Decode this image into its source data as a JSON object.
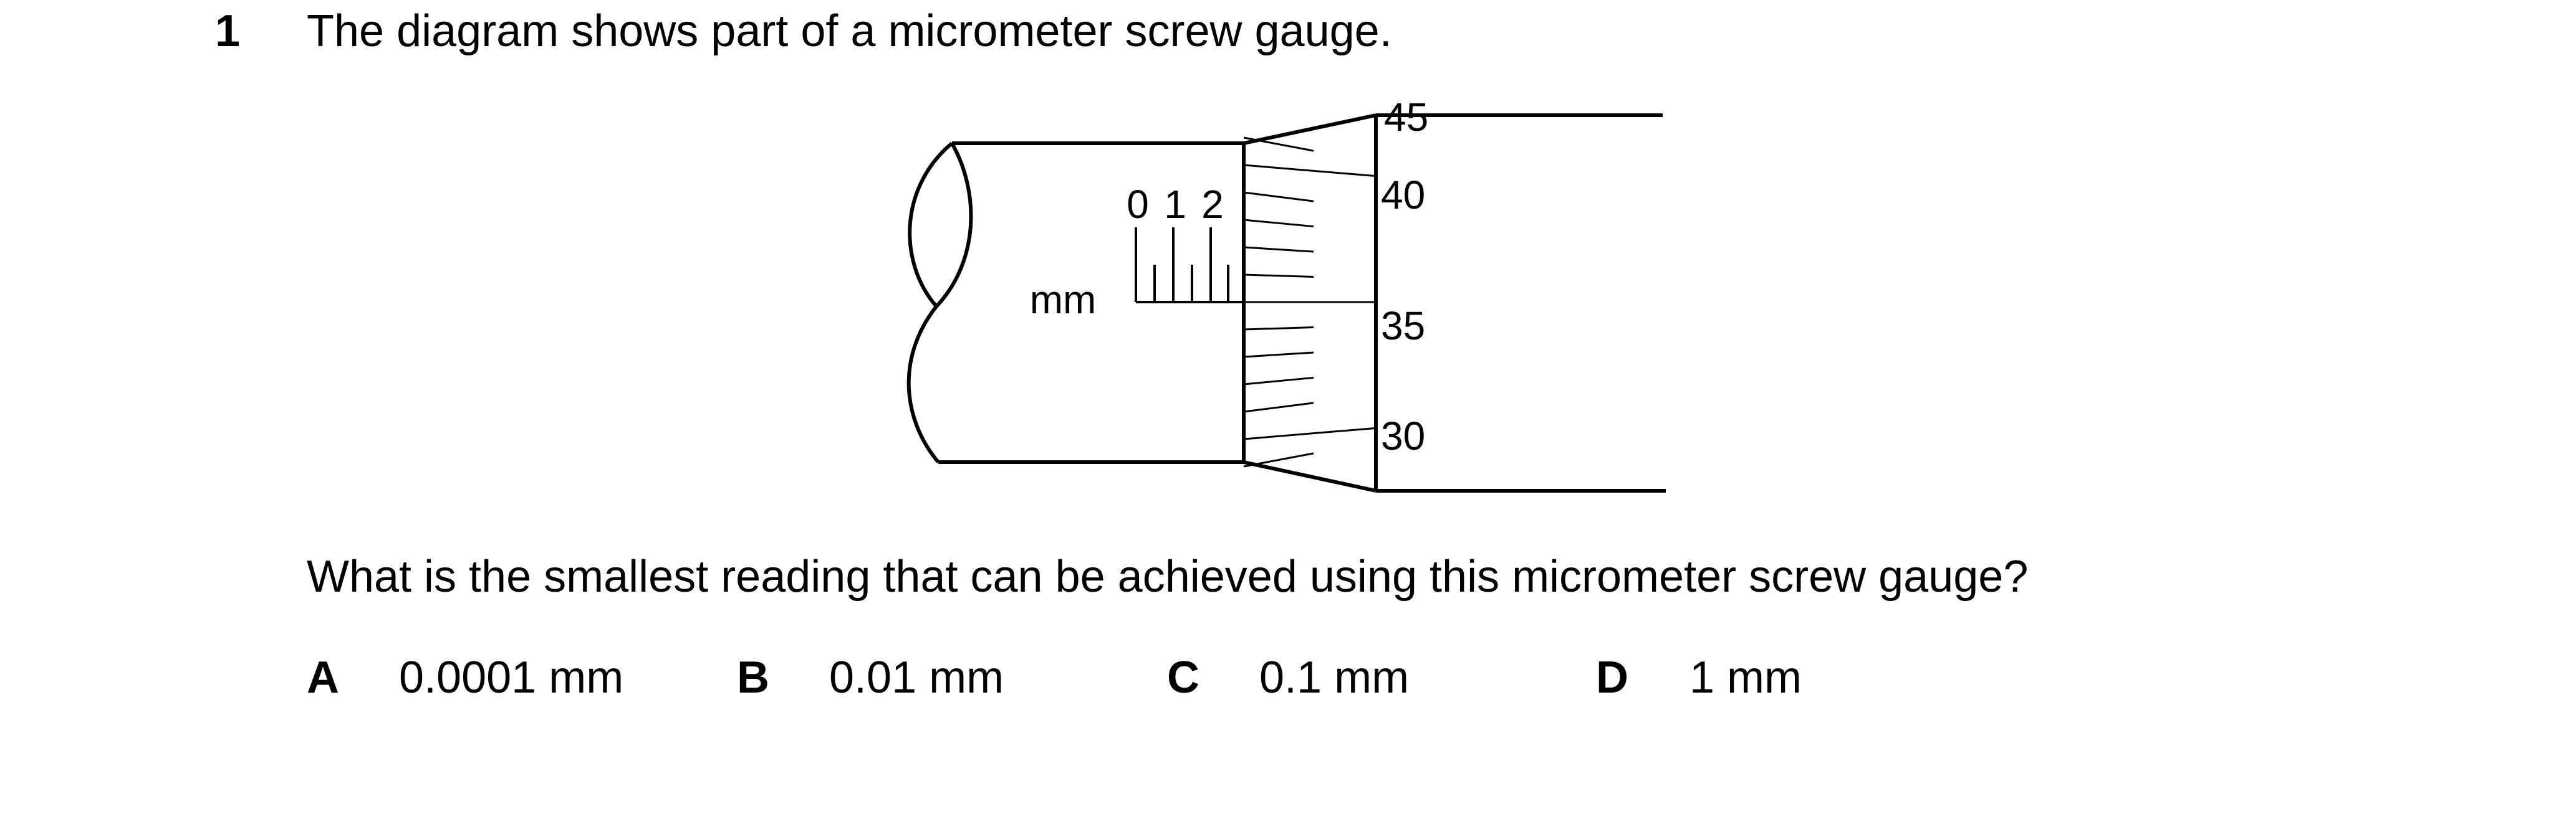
{
  "question": {
    "number": "1",
    "stem": "The diagram shows part of a micrometer screw gauge.",
    "ask": "What is the smallest reading that can be achieved using this micrometer screw gauge?"
  },
  "diagram": {
    "sleeve_unit": "mm",
    "sleeve_scale_labels": [
      "0",
      "1",
      "2"
    ],
    "thimble_scale_labels": [
      "45",
      "40",
      "35",
      "30"
    ]
  },
  "options": [
    {
      "letter": "A",
      "text": "0.0001 mm"
    },
    {
      "letter": "B",
      "text": "0.01 mm"
    },
    {
      "letter": "C",
      "text": "0.1 mm"
    },
    {
      "letter": "D",
      "text": "1 mm"
    }
  ]
}
